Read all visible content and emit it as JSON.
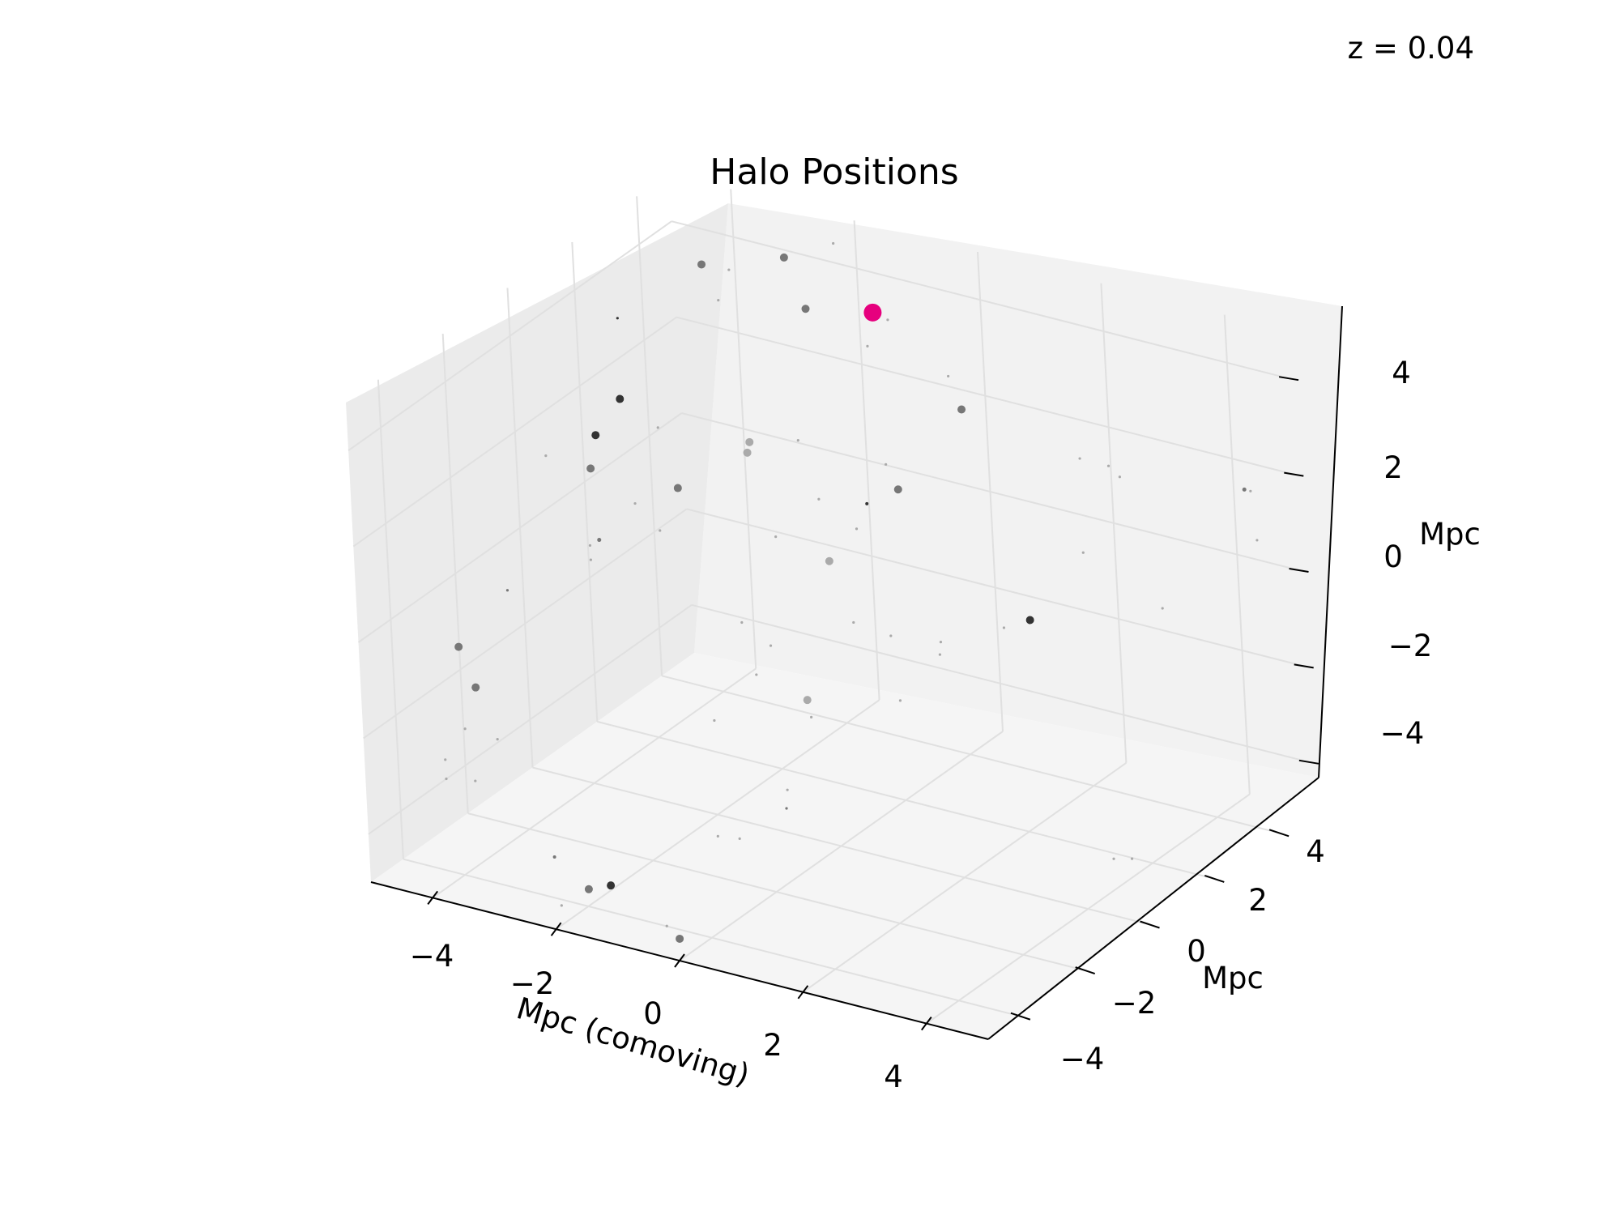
{
  "chart_data": {
    "type": "scatter",
    "projection": "3d",
    "title": "Halo Positions",
    "annotation": "z = 0.04",
    "xlabel": "Mpc (comoving)",
    "ylabel": "Mpc",
    "zlabel": "Mpc",
    "xlim": [
      -5,
      5
    ],
    "ylim": [
      -5,
      5
    ],
    "zlim": [
      -5,
      5
    ],
    "xticks": [
      -4,
      -2,
      0,
      2,
      4
    ],
    "yticks": [
      -4,
      -2,
      0,
      2,
      4
    ],
    "zticks": [
      -4,
      -2,
      0,
      2,
      4
    ],
    "xtick_labels": [
      "−4",
      "−2",
      "0",
      "2",
      "4"
    ],
    "ytick_labels": [
      "−4",
      "−2",
      "0",
      "2",
      "4"
    ],
    "ztick_labels": [
      "−4",
      "−2",
      "0",
      "2",
      "4"
    ],
    "grid": true,
    "colors": {
      "highlight": "#e6007e",
      "halo_dark": "#333333",
      "halo_mid": "#777777",
      "halo_light": "#aaaaaa",
      "pane_back": "#f2f2f2",
      "pane_side": "#ebebeb",
      "pane_floor": "#f5f5f5",
      "grid": "#e0e0e0"
    },
    "highlight": {
      "x": -0.4,
      "y": 2.5,
      "z": 4.8,
      "size": 11
    },
    "points": [
      {
        "x": -2.8,
        "y": 4.3,
        "z": 4.3,
        "size": 5,
        "shade": "mid"
      },
      {
        "x": -2.6,
        "y": 4.5,
        "z": 3.2,
        "size": 5,
        "shade": "mid"
      },
      {
        "x": -2.2,
        "y": 4.7,
        "z": 4.6,
        "size": 1.6,
        "shade": "light"
      },
      {
        "x": -0.6,
        "y": 3.3,
        "z": 4.2,
        "size": 1.6,
        "shade": "light"
      },
      {
        "x": -0.9,
        "y": 3.2,
        "z": 3.6,
        "size": 1.6,
        "shade": "light"
      },
      {
        "x": 0.4,
        "y": 3.2,
        "z": 3.4,
        "size": 1.6,
        "shade": "light"
      },
      {
        "x": 0.7,
        "y": 3.0,
        "z": 2.9,
        "size": 5,
        "shade": "mid"
      },
      {
        "x": 2.6,
        "y": 3.0,
        "z": 2.5,
        "size": 1.6,
        "shade": "light"
      },
      {
        "x": 2.9,
        "y": 3.3,
        "z": 2.3,
        "size": 1.6,
        "shade": "light"
      },
      {
        "x": 2.8,
        "y": 3.8,
        "z": 1.8,
        "size": 1.6,
        "shade": "light"
      },
      {
        "x": 5.0,
        "y": 3.5,
        "z": 2.4,
        "size": 2.5,
        "shade": "mid"
      },
      {
        "x": 5.1,
        "y": 3.5,
        "z": 2.4,
        "size": 1.6,
        "shade": "light"
      },
      {
        "x": 5.0,
        "y": 3.8,
        "z": 1.2,
        "size": 1.6,
        "shade": "light"
      },
      {
        "x": 4.6,
        "y": 1.6,
        "z": 0.7,
        "size": 1.6,
        "shade": "light"
      },
      {
        "x": 2.3,
        "y": 3.5,
        "z": 0.2,
        "size": 1.6,
        "shade": "light"
      },
      {
        "x": 2.8,
        "y": 0.9,
        "z": 0.2,
        "size": 5,
        "shade": "dark"
      },
      {
        "x": 2.2,
        "y": 1.2,
        "z": -0.3,
        "size": 1.6,
        "shade": "light"
      },
      {
        "x": -0.3,
        "y": 2.8,
        "z": 1.0,
        "size": 5,
        "shade": "mid"
      },
      {
        "x": -0.7,
        "y": 3.2,
        "z": 1.2,
        "size": 1.6,
        "shade": "light"
      },
      {
        "x": -0.3,
        "y": 1.5,
        "z": 0.8,
        "size": 1.6,
        "shade": "light"
      },
      {
        "x": -1.1,
        "y": 3.3,
        "z": 0.2,
        "size": 2,
        "shade": "dark"
      },
      {
        "x": -0.5,
        "y": 1.0,
        "z": 0.3,
        "size": 5,
        "shade": "light"
      },
      {
        "x": -0.1,
        "y": 0.9,
        "z": -0.8,
        "size": 1.6,
        "shade": "light"
      },
      {
        "x": -2.7,
        "y": 2.8,
        "z": 1.2,
        "size": 5,
        "shade": "light"
      },
      {
        "x": -2.8,
        "y": 2.9,
        "z": 0.9,
        "size": 5,
        "shade": "light"
      },
      {
        "x": -1.9,
        "y": 2.8,
        "z": 1.5,
        "size": 1.6,
        "shade": "light"
      },
      {
        "x": -1.5,
        "y": 2.6,
        "z": 0.5,
        "size": 1.6,
        "shade": "light"
      },
      {
        "x": -1.8,
        "y": 1.8,
        "z": 0.0,
        "size": 1.6,
        "shade": "light"
      },
      {
        "x": -2.1,
        "y": 1.2,
        "z": -1.6,
        "size": 1.6,
        "shade": "light"
      },
      {
        "x": -1.7,
        "y": 1.3,
        "z": -2.0,
        "size": 1.6,
        "shade": "light"
      },
      {
        "x": -1.3,
        "y": 0.1,
        "z": -1.9,
        "size": 1.6,
        "shade": "light"
      },
      {
        "x": -1.7,
        "y": -0.5,
        "z": -2.7,
        "size": 1.6,
        "shade": "light"
      },
      {
        "x": -0.6,
        "y": 0.4,
        "z": -2.7,
        "size": 1.6,
        "shade": "light"
      },
      {
        "x": 0.6,
        "y": 2.2,
        "z": -1.6,
        "size": 1.6,
        "shade": "light"
      },
      {
        "x": -0.1,
        "y": -0.6,
        "z": -1.7,
        "size": 5,
        "shade": "light"
      },
      {
        "x": -3.5,
        "y": 3.1,
        "z": 4.5,
        "size": 5,
        "shade": "mid"
      },
      {
        "x": -3.0,
        "y": 3.0,
        "z": 4.6,
        "size": 1.6,
        "shade": "light"
      },
      {
        "x": -3.2,
        "y": 3.0,
        "z": 3.9,
        "size": 1.6,
        "shade": "light"
      },
      {
        "x": -4.1,
        "y": 1.6,
        "z": 3.9,
        "size": 1.6,
        "shade": "dark"
      },
      {
        "x": -3.8,
        "y": 1.0,
        "z": 2.6,
        "size": 5,
        "shade": "dark"
      },
      {
        "x": -3.2,
        "y": 1.0,
        "z": 2.2,
        "size": 1.6,
        "shade": "light"
      },
      {
        "x": -3.9,
        "y": 0.4,
        "z": 2.1,
        "size": 5,
        "shade": "dark"
      },
      {
        "x": -3.9,
        "y": 0.2,
        "z": 1.5,
        "size": 5,
        "shade": "mid"
      },
      {
        "x": -4.9,
        "y": 0.7,
        "z": 1.2,
        "size": 1.6,
        "shade": "light"
      },
      {
        "x": -3.2,
        "y": 0.2,
        "z": 1.0,
        "size": 1.6,
        "shade": "light"
      },
      {
        "x": -3.2,
        "y": 1.5,
        "z": 0.7,
        "size": 5,
        "shade": "mid"
      },
      {
        "x": -3.2,
        "y": 0.9,
        "z": 0.1,
        "size": 1.6,
        "shade": "light"
      },
      {
        "x": -3.7,
        "y": -0.3,
        "z": 0.2,
        "size": 1.6,
        "shade": "light"
      },
      {
        "x": -3.7,
        "y": -0.3,
        "z": -0.1,
        "size": 1.6,
        "shade": "light"
      },
      {
        "x": -3.6,
        "y": -0.2,
        "z": 0.3,
        "size": 2.5,
        "shade": "mid"
      },
      {
        "x": -4.6,
        "y": -1.2,
        "z": -0.6,
        "size": 1.6,
        "shade": "mid"
      },
      {
        "x": -4.9,
        "y": -2.2,
        "z": -1.4,
        "size": 5,
        "shade": "mid"
      },
      {
        "x": -4.6,
        "y": -2.3,
        "z": -2.1,
        "size": 5,
        "shade": "mid"
      },
      {
        "x": -4.7,
        "y": -2.5,
        "z": -2.9,
        "size": 1.6,
        "shade": "light"
      },
      {
        "x": -4.5,
        "y": -3.5,
        "z": -3.0,
        "size": 1.6,
        "shade": "light"
      },
      {
        "x": -4.5,
        "y": -3.5,
        "z": -3.4,
        "size": 1.6,
        "shade": "light"
      },
      {
        "x": -3.2,
        "y": -5.0,
        "z": -2.3,
        "size": 1.6,
        "shade": "light"
      },
      {
        "x": -2.8,
        "y": -5.0,
        "z": -1.3,
        "size": 1.6,
        "shade": "light"
      },
      {
        "x": -2.9,
        "y": -3.3,
        "z": -4.6,
        "size": 2,
        "shade": "mid"
      },
      {
        "x": -2.0,
        "y": -3.3,
        "z": -4.9,
        "size": 5,
        "shade": "dark"
      },
      {
        "x": -1.0,
        "y": -1.2,
        "z": -4.6,
        "size": 1.6,
        "shade": "light"
      },
      {
        "x": -1.3,
        "y": -1.3,
        "z": -4.6,
        "size": 1.6,
        "shade": "light"
      },
      {
        "x": -0.7,
        "y": -0.3,
        "z": -4.3,
        "size": 1.6,
        "shade": "mid"
      },
      {
        "x": -1.0,
        "y": 0.3,
        "z": -4.3,
        "size": 1.6,
        "shade": "light"
      },
      {
        "x": -2.0,
        "y": -4.8,
        "z": -4.6,
        "size": 1.6,
        "shade": "light"
      },
      {
        "x": -2.2,
        "y": -3.6,
        "z": -4.9,
        "size": 5,
        "shade": "mid"
      },
      {
        "x": -0.4,
        "y": -4.6,
        "z": -4.6,
        "size": 1.6,
        "shade": "light"
      },
      {
        "x": -0.2,
        "y": -4.6,
        "z": -4.8,
        "size": 5,
        "shade": "mid"
      },
      {
        "x": -0.6,
        "y": 2.9,
        "z": -2.2,
        "size": 1.6,
        "shade": "light"
      },
      {
        "x": 0.3,
        "y": 2.7,
        "z": -2.2,
        "size": 1.6,
        "shade": "light"
      },
      {
        "x": 0.6,
        "y": 0.9,
        "z": -2.2,
        "size": 1.6,
        "shade": "light"
      },
      {
        "x": 4.3,
        "y": 0.3,
        "z": -4.0,
        "size": 1.6,
        "shade": "light"
      },
      {
        "x": 4.6,
        "y": 0.3,
        "z": -3.9,
        "size": 1.6,
        "shade": "light"
      }
    ]
  }
}
